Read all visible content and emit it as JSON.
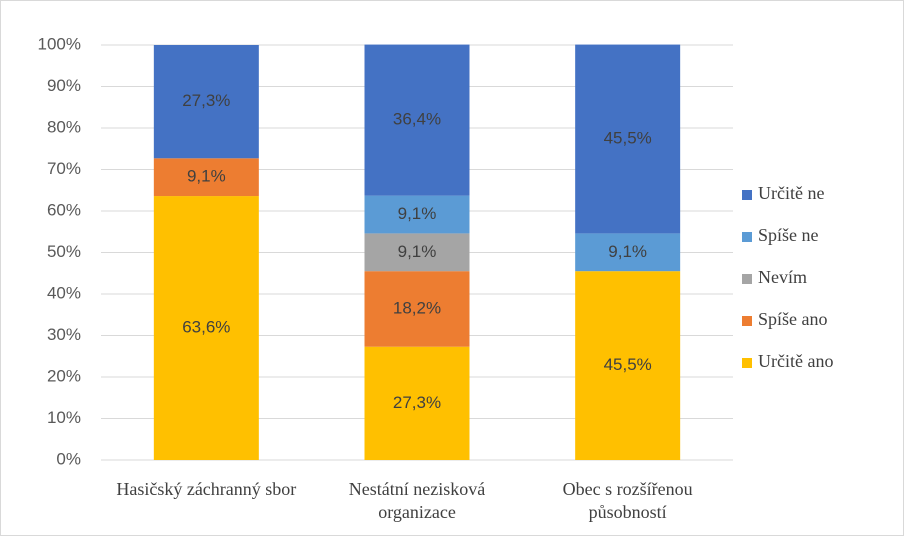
{
  "chart_data": {
    "type": "stacked_bar",
    "categories": [
      "Hasičský záchranný sbor",
      "Nestátní nezisková organizace",
      "Obec s rozšířenou působností"
    ],
    "series": [
      {
        "name": "Určitě ano",
        "color": "#ffc000",
        "values": [
          63.6,
          27.3,
          45.5
        ],
        "value_labels": [
          "63,6%",
          "27,3%",
          "45,5%"
        ]
      },
      {
        "name": "Spíše ano",
        "color": "#ed7d31",
        "values": [
          9.1,
          18.2,
          0
        ],
        "value_labels": [
          "9,1%",
          "18,2%",
          null
        ]
      },
      {
        "name": "Nevím",
        "color": "#a5a5a5",
        "values": [
          0,
          9.1,
          0
        ],
        "value_labels": [
          null,
          "9,1%",
          null
        ]
      },
      {
        "name": "Spíše ne",
        "color": "#5b9bd5",
        "values": [
          0,
          9.1,
          9.1
        ],
        "value_labels": [
          null,
          "9,1%",
          "9,1%"
        ]
      },
      {
        "name": "Určitě ne",
        "color": "#4472c4",
        "values": [
          27.3,
          36.4,
          45.5
        ],
        "value_labels": [
          "27,3%",
          "36,4%",
          "45,5%"
        ]
      }
    ],
    "ylim": [
      0,
      100
    ],
    "yticks": [
      {
        "value": 0,
        "label": "0%"
      },
      {
        "value": 10,
        "label": "10%"
      },
      {
        "value": 20,
        "label": "20%"
      },
      {
        "value": 30,
        "label": "30%"
      },
      {
        "value": 40,
        "label": "40%"
      },
      {
        "value": 50,
        "label": "50%"
      },
      {
        "value": 60,
        "label": "60%"
      },
      {
        "value": 70,
        "label": "70%"
      },
      {
        "value": 80,
        "label": "80%"
      },
      {
        "value": 90,
        "label": "90%"
      },
      {
        "value": 100,
        "label": "100%"
      }
    ],
    "grid": true,
    "legend": "right"
  }
}
